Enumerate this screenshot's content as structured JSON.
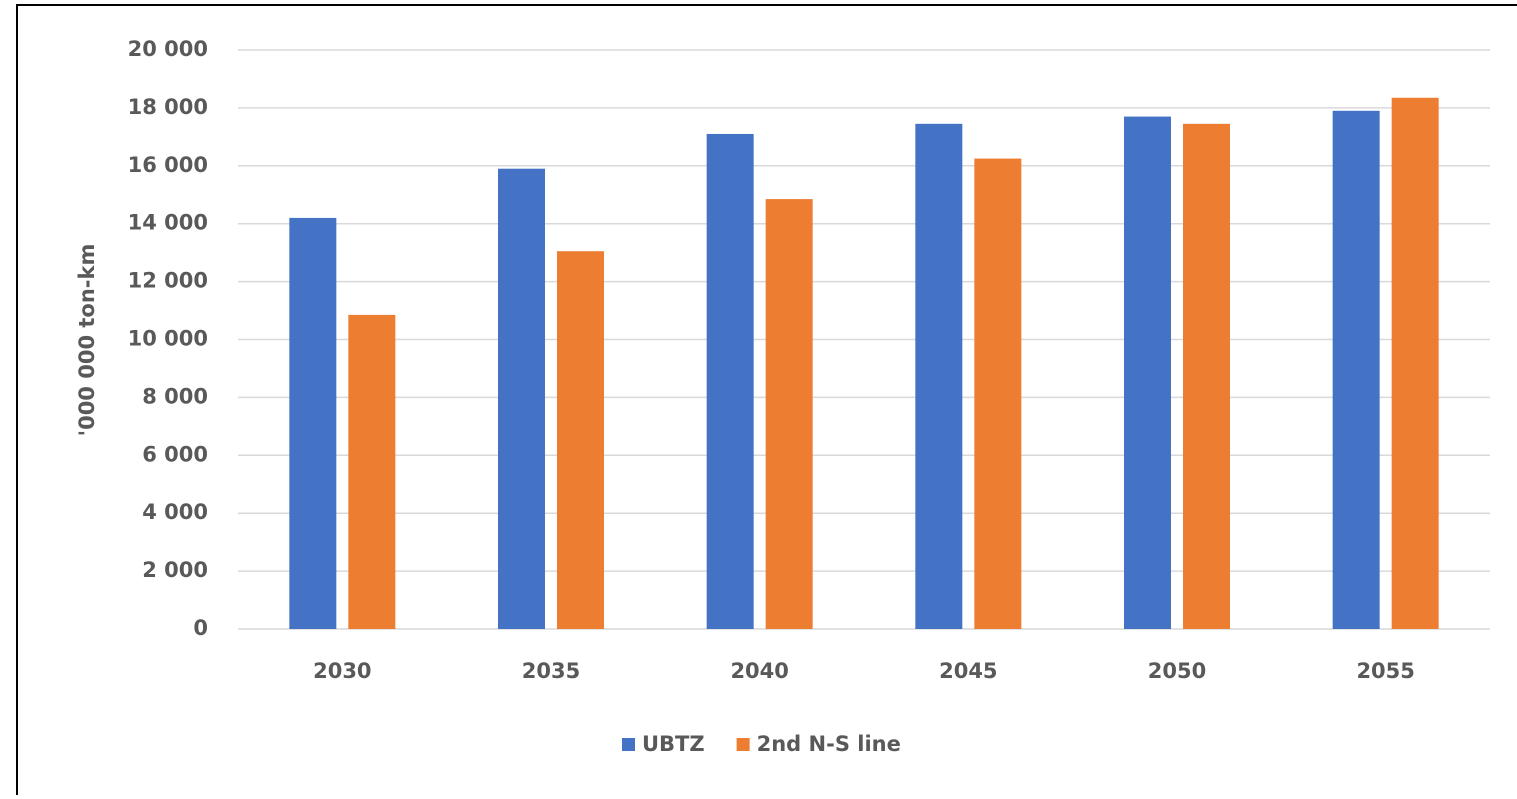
{
  "chart_data": {
    "type": "bar",
    "y_label": "'000 000 ton-km",
    "categories": [
      "2030",
      "2035",
      "2040",
      "2045",
      "2050",
      "2055"
    ],
    "series": [
      {
        "name": "UBTZ",
        "color": "#4472c4",
        "values": [
          14200,
          15900,
          17100,
          17450,
          17700,
          17900
        ]
      },
      {
        "name": "2nd N-S line",
        "color": "#ed7d31",
        "values": [
          10850,
          13050,
          14850,
          16250,
          17450,
          18350
        ]
      }
    ],
    "ylim": [
      0,
      20000
    ],
    "yticks": [
      0,
      {
        "value": 2000,
        "label": "2 000"
      },
      {
        "value": 4000,
        "label": "4 000"
      },
      {
        "value": 6000,
        "label": "6 000"
      },
      {
        "value": 8000,
        "label": "8 000"
      },
      {
        "value": 10000,
        "label": "10 000"
      },
      {
        "value": 12000,
        "label": "12 000"
      },
      {
        "value": 14000,
        "label": "14 000"
      },
      {
        "value": 16000,
        "label": "16 000"
      },
      {
        "value": 18000,
        "label": "18 000"
      },
      {
        "value": 20000,
        "label": "20 000"
      }
    ],
    "grid": true,
    "legend": "bottom"
  }
}
